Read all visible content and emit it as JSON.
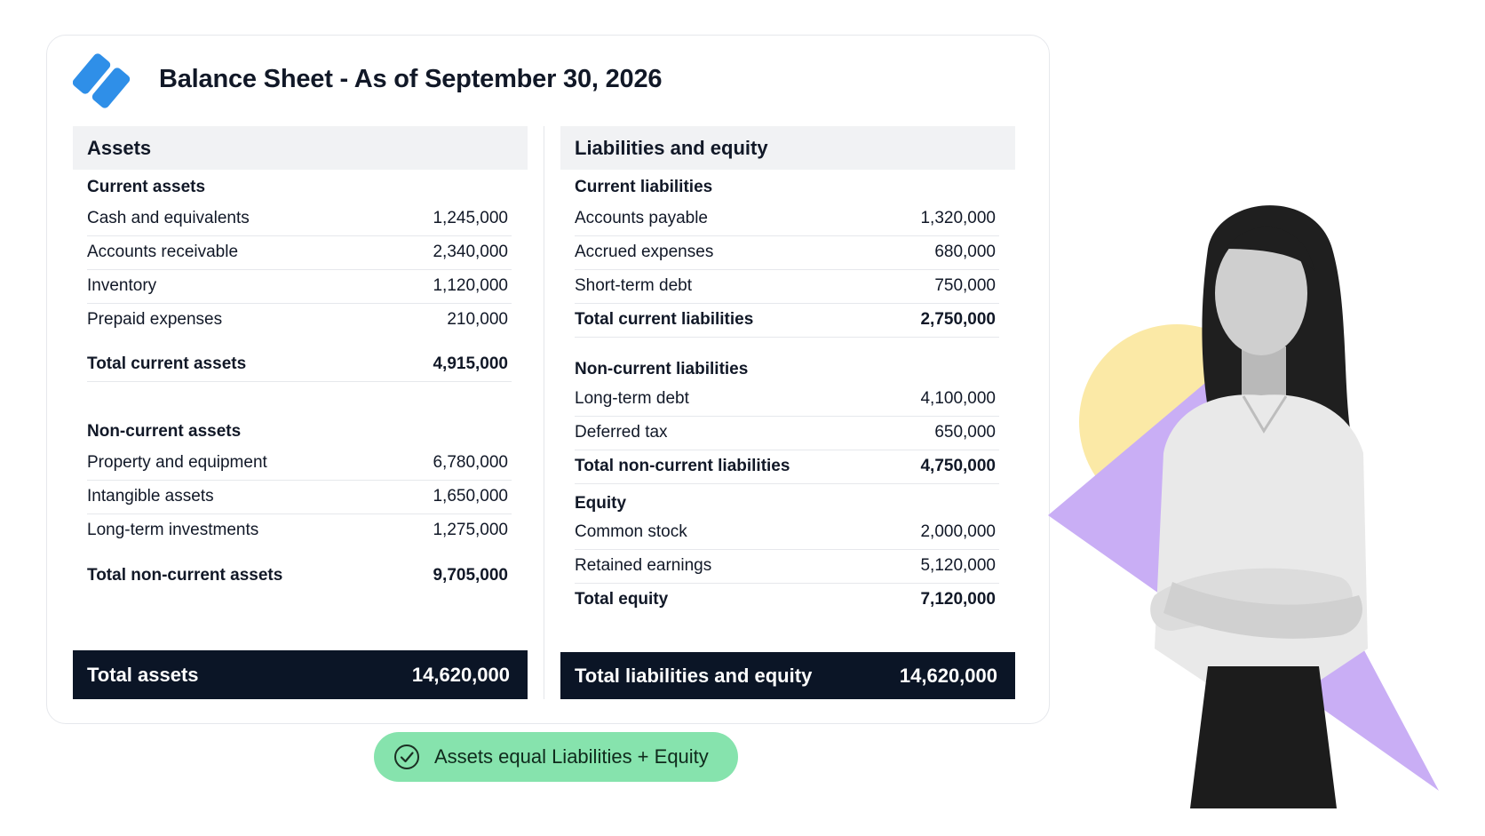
{
  "header": {
    "logo_icon": "stripes-logo-icon",
    "title": "Balance Sheet - As of September 30, 2026"
  },
  "assets": {
    "heading": "Assets",
    "current": {
      "label": "Current assets",
      "items": [
        {
          "label": "Cash and equivalents",
          "value": "1,245,000"
        },
        {
          "label": "Accounts receivable",
          "value": "2,340,000"
        },
        {
          "label": "Inventory",
          "value": "1,120,000"
        },
        {
          "label": "Prepaid expenses",
          "value": "210,000"
        }
      ],
      "total_label": "Total current assets",
      "total_value": "4,915,000"
    },
    "noncurrent": {
      "label": "Non-current assets",
      "items": [
        {
          "label": "Property and equipment",
          "value": "6,780,000"
        },
        {
          "label": "Intangible assets",
          "value": "1,650,000"
        },
        {
          "label": "Long-term investments",
          "value": "1,275,000"
        }
      ],
      "total_label": "Total non-current assets",
      "total_value": "9,705,000"
    },
    "grand_label": "Total assets",
    "grand_value": "14,620,000"
  },
  "liabilities": {
    "heading": "Liabilities and equity",
    "current": {
      "label": "Current liabilities",
      "items": [
        {
          "label": "Accounts payable",
          "value": "1,320,000"
        },
        {
          "label": "Accrued expenses",
          "value": "680,000"
        },
        {
          "label": "Short-term debt",
          "value": "750,000"
        }
      ],
      "total_label": "Total current liabilities",
      "total_value": "2,750,000"
    },
    "noncurrent": {
      "label": "Non-current liabilities",
      "items": [
        {
          "label": "Long-term debt",
          "value": "4,100,000"
        },
        {
          "label": "Deferred tax",
          "value": "650,000"
        }
      ],
      "total_label": "Total non-current liabilities",
      "total_value": "4,750,000"
    },
    "equity": {
      "label": "Equity",
      "items": [
        {
          "label": "Common stock",
          "value": "2,000,000"
        },
        {
          "label": "Retained earnings",
          "value": "5,120,000"
        }
      ],
      "total_label": "Total equity",
      "total_value": "7,120,000"
    },
    "grand_label": "Total liabilities and equity",
    "grand_value": "14,620,000"
  },
  "badge": {
    "icon": "check-circle-icon",
    "text": "Assets equal Liabilities + Equity"
  },
  "illustration": {
    "icon": "person-arms-crossed-illustration",
    "colors": {
      "circle": "#fbe9a6",
      "triangle": "#c9aef5"
    }
  },
  "colors": {
    "accent": "#2f8fe8",
    "total_bar": "#0b1526",
    "badge": "#86e3ad",
    "column_header": "#f1f2f4"
  }
}
